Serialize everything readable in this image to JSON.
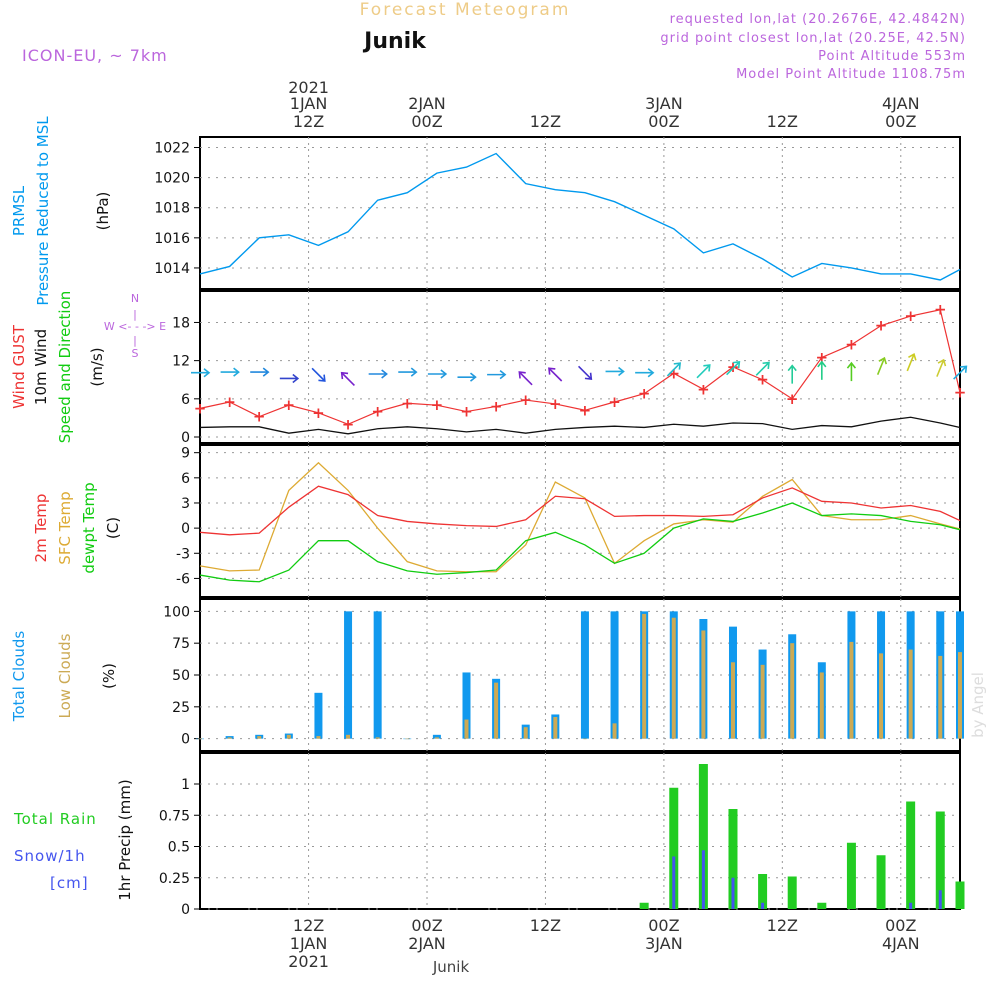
{
  "header": {
    "title": "Forecast Meteogram",
    "station": "Junik",
    "model": "ICON-EU, ~ 7km",
    "requested": "requested lon,lat (20.2676E, 42.4842N)",
    "gridpoint": "grid point closest lon,lat (20.25E, 42.5N)",
    "point_alt": "Point Altitude 553m",
    "model_alt": "Model Point Altitude 1108.75m",
    "footer_station": "Junik",
    "watermark": "by Angel"
  },
  "time_axis": {
    "start_hour": 1,
    "end_hour": 78,
    "top_year": "2021",
    "ticks": [
      {
        "hour": 12,
        "top": [
          "1JAN",
          "12Z"
        ],
        "bottom": [
          "12Z",
          "1JAN",
          "2021"
        ]
      },
      {
        "hour": 24,
        "top": [
          "2JAN",
          "00Z"
        ],
        "bottom": [
          "00Z",
          "2JAN"
        ]
      },
      {
        "hour": 36,
        "top": [
          "",
          "12Z"
        ],
        "bottom": [
          "12Z"
        ]
      },
      {
        "hour": 48,
        "top": [
          "3JAN",
          "00Z"
        ],
        "bottom": [
          "00Z",
          "3JAN"
        ]
      },
      {
        "hour": 60,
        "top": [
          "",
          "12Z"
        ],
        "bottom": [
          "12Z"
        ]
      },
      {
        "hour": 72,
        "top": [
          "4JAN",
          "00Z"
        ],
        "bottom": [
          "00Z",
          "4JAN"
        ]
      }
    ]
  },
  "panels": {
    "pressure": {
      "labels": [
        "PRMSL",
        "Pressure Reduced to MSL"
      ],
      "unit": "(hPa)",
      "ylim": [
        1013,
        1022.3
      ],
      "yticks": [
        1014,
        1016,
        1018,
        1020,
        1022
      ]
    },
    "wind": {
      "labels": [
        "Wind GUST",
        "10m Wind",
        "Speed and Direction"
      ],
      "unit": "(m/s)",
      "ylim": [
        0,
        22
      ],
      "yticks": [
        0,
        6,
        12,
        18
      ],
      "compass": {
        "n": "N",
        "s": "S",
        "e": "E",
        "w": "W"
      }
    },
    "temp": {
      "labels": [
        "2m Temp",
        "SFC Temp",
        "dewpt Temp"
      ],
      "unit": "(C)",
      "ylim": [
        -7.5,
        9.2
      ],
      "yticks": [
        -6,
        -3,
        0,
        3,
        6,
        9
      ]
    },
    "clouds": {
      "labels": [
        "Total Clouds",
        "Low Clouds"
      ],
      "unit": "(%)",
      "ylim": [
        -5,
        105
      ],
      "yticks": [
        0,
        25,
        50,
        75,
        100
      ]
    },
    "precip": {
      "labels": [
        "Total  Rain",
        "Snow/1h",
        "[cm]"
      ],
      "ylabel": "1hr Precip (mm)",
      "ylim": [
        0,
        1.2
      ],
      "yticks": [
        0,
        0.25,
        0.5,
        0.75,
        1
      ]
    }
  },
  "colors": {
    "pressure": "#0099ee",
    "gust": "#ee3333",
    "wind": "#111111",
    "t2m": "#ee3333",
    "sfc": "#ddaa33",
    "dew": "#11cc11",
    "total_clouds": "#1199ee",
    "low_clouds": "#ccaa55",
    "rain": "#22cc22",
    "snow": "#4455ee",
    "title": "#eecc88",
    "info": "#bb66dd"
  },
  "chart_data": [
    {
      "type": "line",
      "title": "PRMSL Pressure Reduced to MSL",
      "ylabel": "(hPa)",
      "ylim": [
        1013,
        1022.3
      ],
      "x": [
        1,
        4,
        7,
        10,
        13,
        16,
        19,
        22,
        25,
        28,
        31,
        34,
        37,
        40,
        43,
        46,
        49,
        52,
        55,
        58,
        61,
        64,
        67,
        70,
        73,
        76,
        78
      ],
      "series": [
        {
          "name": "PRMSL",
          "values": [
            1013.6,
            1014.1,
            1016.0,
            1016.2,
            1015.5,
            1016.4,
            1018.5,
            1019.0,
            1020.3,
            1020.7,
            1021.6,
            1019.6,
            1019.2,
            1019.0,
            1018.4,
            1017.5,
            1016.6,
            1015.0,
            1015.6,
            1014.6,
            1013.4,
            1014.3,
            1014.0,
            1013.6,
            1013.6,
            1013.2,
            1013.9
          ]
        }
      ]
    },
    {
      "type": "line",
      "title": "Wind GUST / 10m Wind Speed and Direction",
      "ylabel": "(m/s)",
      "ylim": [
        0,
        22
      ],
      "x": [
        1,
        4,
        7,
        10,
        13,
        16,
        19,
        22,
        25,
        28,
        31,
        34,
        37,
        40,
        43,
        46,
        49,
        52,
        55,
        58,
        61,
        64,
        67,
        70,
        73,
        76,
        78
      ],
      "series": [
        {
          "name": "Wind GUST",
          "values": [
            4.5,
            5.5,
            3.2,
            5.0,
            3.8,
            2.0,
            4.0,
            5.3,
            5.0,
            4.0,
            4.8,
            5.8,
            5.2,
            4.2,
            5.5,
            6.8,
            10.0,
            7.5,
            11.0,
            9.0,
            6.0,
            12.5,
            14.5,
            17.5,
            19.0,
            20.0,
            7.0
          ]
        },
        {
          "name": "10m Wind",
          "values": [
            1.5,
            1.6,
            1.6,
            0.6,
            1.2,
            0.5,
            1.3,
            1.6,
            1.3,
            0.8,
            1.2,
            0.6,
            1.2,
            1.5,
            1.7,
            1.5,
            2.0,
            1.7,
            2.2,
            2.1,
            1.2,
            1.8,
            1.6,
            2.5,
            3.1,
            2.2,
            1.5
          ]
        }
      ],
      "arrows": {
        "x": [
          1,
          4,
          7,
          10,
          13,
          16,
          19,
          22,
          25,
          28,
          31,
          34,
          37,
          40,
          43,
          46,
          49,
          52,
          55,
          58,
          61,
          64,
          67,
          70,
          73,
          76,
          78
        ],
        "dir": [
          "W",
          "W",
          "W",
          "W",
          "NW",
          "SE",
          "W",
          "W",
          "W",
          "W",
          "W",
          "SE",
          "SE",
          "NW",
          "W",
          "W",
          "SW",
          "SW",
          "SW",
          "SW",
          "S",
          "S",
          "S",
          "SSW",
          "SSW",
          "SSW",
          "SW"
        ]
      }
    },
    {
      "type": "line",
      "title": "2m Temp / SFC Temp / dewpt Temp",
      "ylabel": "(C)",
      "ylim": [
        -7.5,
        9.2
      ],
      "x": [
        1,
        4,
        7,
        10,
        13,
        16,
        19,
        22,
        25,
        28,
        31,
        34,
        37,
        40,
        43,
        46,
        49,
        52,
        55,
        58,
        61,
        64,
        67,
        70,
        73,
        76,
        78
      ],
      "series": [
        {
          "name": "2m Temp",
          "values": [
            -0.5,
            -0.8,
            -0.6,
            2.5,
            5.0,
            4.0,
            1.5,
            0.8,
            0.5,
            0.3,
            0.2,
            1.0,
            3.8,
            3.5,
            1.4,
            1.5,
            1.5,
            1.4,
            1.6,
            3.6,
            4.8,
            3.2,
            3.0,
            2.4,
            2.7,
            2.0,
            0.9
          ]
        },
        {
          "name": "SFC Temp",
          "values": [
            -4.5,
            -5.1,
            -5.0,
            4.5,
            7.8,
            4.5,
            0.0,
            -4.0,
            -5.1,
            -5.2,
            -5.2,
            -2.0,
            5.5,
            3.6,
            -4.2,
            -1.5,
            0.5,
            1.0,
            0.7,
            3.8,
            5.8,
            1.5,
            1.0,
            1.0,
            1.5,
            0.5,
            -0.1
          ]
        },
        {
          "name": "dewpt Temp",
          "values": [
            -5.6,
            -6.2,
            -6.4,
            -5.0,
            -1.5,
            -1.5,
            -4.0,
            -5.1,
            -5.5,
            -5.3,
            -5.0,
            -1.5,
            -0.5,
            -2.0,
            -4.2,
            -3.0,
            0.0,
            1.1,
            0.8,
            1.8,
            3.0,
            1.5,
            1.7,
            1.5,
            0.8,
            0.4,
            -0.2
          ]
        }
      ]
    },
    {
      "type": "bar",
      "title": "Total Clouds / Low Clouds",
      "ylabel": "(%)",
      "ylim": [
        -5,
        105
      ],
      "x": [
        1,
        4,
        7,
        10,
        13,
        16,
        19,
        22,
        25,
        28,
        31,
        34,
        37,
        40,
        43,
        46,
        49,
        52,
        55,
        58,
        61,
        64,
        67,
        70,
        73,
        76,
        78
      ],
      "series": [
        {
          "name": "Total Clouds",
          "values": [
            0,
            2,
            3,
            4,
            36,
            100,
            100,
            0,
            3,
            52,
            47,
            11,
            19,
            100,
            100,
            100,
            100,
            94,
            88,
            70,
            82,
            60,
            100,
            100,
            100,
            100,
            100
          ]
        },
        {
          "name": "Low Clouds",
          "values": [
            0,
            1,
            2,
            3,
            2,
            3,
            1,
            0,
            1,
            15,
            44,
            9,
            17,
            0,
            12,
            98,
            95,
            85,
            60,
            58,
            75,
            52,
            76,
            67,
            70,
            65,
            68
          ]
        }
      ]
    },
    {
      "type": "bar",
      "title": "Total Rain / Snow/1h",
      "ylabel": "1hr Precip (mm)",
      "ylim": [
        0,
        1.2
      ],
      "x": [
        1,
        4,
        7,
        10,
        13,
        16,
        19,
        22,
        25,
        28,
        31,
        34,
        37,
        40,
        43,
        46,
        49,
        52,
        55,
        58,
        61,
        64,
        67,
        70,
        73,
        76,
        78
      ],
      "series": [
        {
          "name": "Total Rain",
          "values": [
            0,
            0,
            0,
            0,
            0,
            0,
            0,
            0,
            0,
            0,
            0,
            0,
            0,
            0,
            0,
            0.05,
            0.97,
            1.16,
            0.8,
            0.28,
            0.26,
            0.05,
            0.53,
            0.43,
            0.86,
            0.78,
            0.22
          ]
        },
        {
          "name": "Snow/1h",
          "values": [
            0,
            0,
            0,
            0,
            0,
            0,
            0,
            0,
            0,
            0,
            0,
            0,
            0,
            0,
            0,
            0,
            0.42,
            0.47,
            0.25,
            0.05,
            0,
            0,
            0,
            0,
            0.05,
            0.15,
            0
          ]
        }
      ]
    }
  ]
}
